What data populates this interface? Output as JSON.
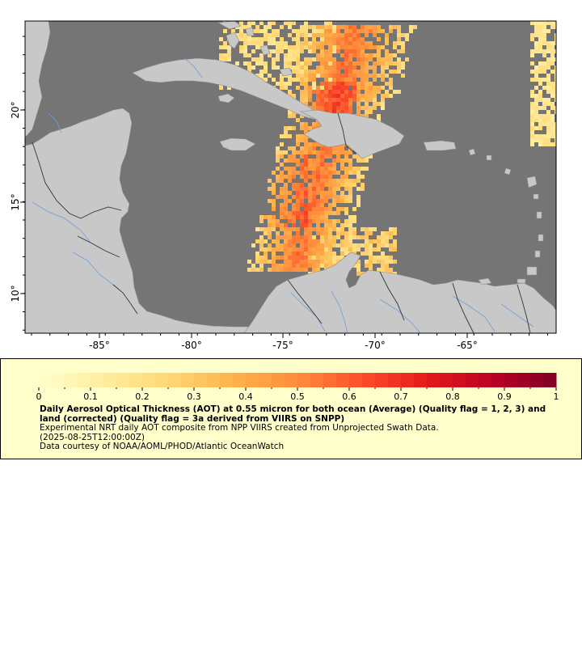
{
  "map": {
    "region": "Caribbean Sea",
    "colors": {
      "ocean_nodata": "#757575",
      "land": "#c8c8c8",
      "rivers": "#6f9fd8",
      "borders": "#333333",
      "coastline": "#8c8c8c"
    },
    "lon_ticks": [
      "-85°",
      "-80°",
      "-75°",
      "-70°",
      "-65°"
    ],
    "lat_ticks": [
      "20°",
      "15°",
      "10°"
    ]
  },
  "legend": {
    "colorbar_labels": [
      "0",
      "0.1",
      "0.2",
      "0.3",
      "0.4",
      "0.5",
      "0.6",
      "0.7",
      "0.8",
      "0.9",
      "1"
    ],
    "colorbar_min": 0,
    "colorbar_max": 1,
    "colorbar_colors": [
      "#ffffcc",
      "#ffeda0",
      "#fed976",
      "#feb24c",
      "#fd8d3c",
      "#fc4e2a",
      "#e31a1c",
      "#bd0026",
      "#800026"
    ],
    "title": "Daily Aerosol Optical Thickness (AOT) at 0.55 micron for both ocean (Average) (Quality flag = 1, 2, 3) and land (corrected) (Quality flag = 3a derived from VIIRS on SNPP)",
    "line1": "Experimental NRT daily AOT composite from NPP VIIRS created from Unprojected Swath Data.",
    "line2": "(2025-08-25T12:00:00Z)",
    "line3": "Data courtesy of NOAA/AOML/PHOD/Atlantic OceanWatch"
  }
}
